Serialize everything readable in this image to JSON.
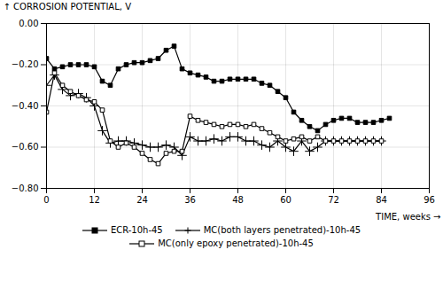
{
  "chart_data": {
    "type": "line",
    "xlabel": "TIME, weeks",
    "ylabel": "CORROSION POTENTIAL, V",
    "xlim": [
      0,
      96
    ],
    "ylim": [
      -0.8,
      0.0
    ],
    "xticks": [
      0,
      12,
      24,
      36,
      48,
      60,
      72,
      84,
      96
    ],
    "yticks": [
      {
        "value": 0.0,
        "label": "0.00"
      },
      {
        "value": -0.2,
        "label": "−0.20"
      },
      {
        "value": -0.4,
        "label": "−0.40"
      },
      {
        "value": -0.6,
        "label": "−0.60"
      },
      {
        "value": -0.8,
        "label": "−0.80"
      }
    ],
    "grid": true,
    "legend": "bottom",
    "series": [
      {
        "name": "ECR-10h-45",
        "color": "#000000",
        "marker": "square",
        "x": [
          0,
          2,
          4,
          6,
          8,
          10,
          12,
          14,
          16,
          18,
          20,
          22,
          24,
          26,
          28,
          30,
          32,
          34,
          36,
          38,
          40,
          42,
          44,
          46,
          48,
          50,
          52,
          54,
          56,
          58,
          60,
          62,
          64,
          66,
          68,
          70,
          72,
          74,
          76,
          78,
          80,
          82,
          84,
          86
        ],
        "values": [
          -0.17,
          -0.22,
          -0.21,
          -0.2,
          -0.2,
          -0.2,
          -0.21,
          -0.28,
          -0.3,
          -0.22,
          -0.2,
          -0.19,
          -0.19,
          -0.18,
          -0.17,
          -0.13,
          -0.11,
          -0.22,
          -0.24,
          -0.25,
          -0.26,
          -0.28,
          -0.28,
          -0.27,
          -0.27,
          -0.27,
          -0.27,
          -0.29,
          -0.3,
          -0.33,
          -0.36,
          -0.43,
          -0.47,
          -0.5,
          -0.52,
          -0.49,
          -0.47,
          -0.46,
          -0.46,
          -0.48,
          -0.48,
          -0.48,
          -0.47,
          -0.46
        ]
      },
      {
        "name": "MC(both layers penetrated)-10h-45",
        "color": "#000000",
        "marker": "plus",
        "x": [
          0,
          2,
          4,
          6,
          8,
          10,
          12,
          14,
          16,
          18,
          20,
          22,
          24,
          26,
          28,
          30,
          32,
          34,
          36,
          38,
          40,
          42,
          44,
          46,
          48,
          50,
          52,
          54,
          56,
          58,
          60,
          62,
          64,
          66,
          68,
          70,
          72,
          74,
          76,
          78,
          80,
          82,
          84
        ],
        "values": [
          -0.3,
          -0.25,
          -0.32,
          -0.35,
          -0.34,
          -0.36,
          -0.4,
          -0.52,
          -0.58,
          -0.57,
          -0.57,
          -0.58,
          -0.59,
          -0.6,
          -0.6,
          -0.59,
          -0.6,
          -0.64,
          -0.55,
          -0.57,
          -0.57,
          -0.56,
          -0.57,
          -0.55,
          -0.55,
          -0.57,
          -0.57,
          -0.59,
          -0.6,
          -0.57,
          -0.6,
          -0.62,
          -0.57,
          -0.62,
          -0.6,
          -0.57,
          -0.57,
          -0.57,
          -0.57,
          -0.57,
          -0.57,
          -0.57,
          -0.57
        ]
      },
      {
        "name": "MC(only epoxy penetrated)-10h-45",
        "color": "#000000",
        "marker": "square_open",
        "x": [
          0,
          2,
          4,
          6,
          8,
          10,
          12,
          14,
          16,
          18,
          20,
          22,
          24,
          26,
          28,
          30,
          32,
          34,
          36,
          38,
          40,
          42,
          44,
          46,
          48,
          50,
          52,
          54,
          56,
          58,
          60,
          62,
          64,
          66,
          68,
          70,
          72,
          74,
          76,
          78,
          80,
          82,
          84
        ],
        "values": [
          -0.43,
          -0.24,
          -0.3,
          -0.33,
          -0.35,
          -0.37,
          -0.38,
          -0.42,
          -0.57,
          -0.6,
          -0.58,
          -0.6,
          -0.63,
          -0.66,
          -0.68,
          -0.63,
          -0.62,
          -0.62,
          -0.45,
          -0.47,
          -0.48,
          -0.49,
          -0.5,
          -0.49,
          -0.49,
          -0.5,
          -0.49,
          -0.51,
          -0.53,
          -0.55,
          -0.57,
          -0.56,
          -0.55,
          -0.57,
          -0.55,
          -0.57,
          -0.57,
          -0.57,
          -0.57,
          -0.57,
          -0.57,
          -0.57,
          -0.57
        ]
      }
    ]
  }
}
